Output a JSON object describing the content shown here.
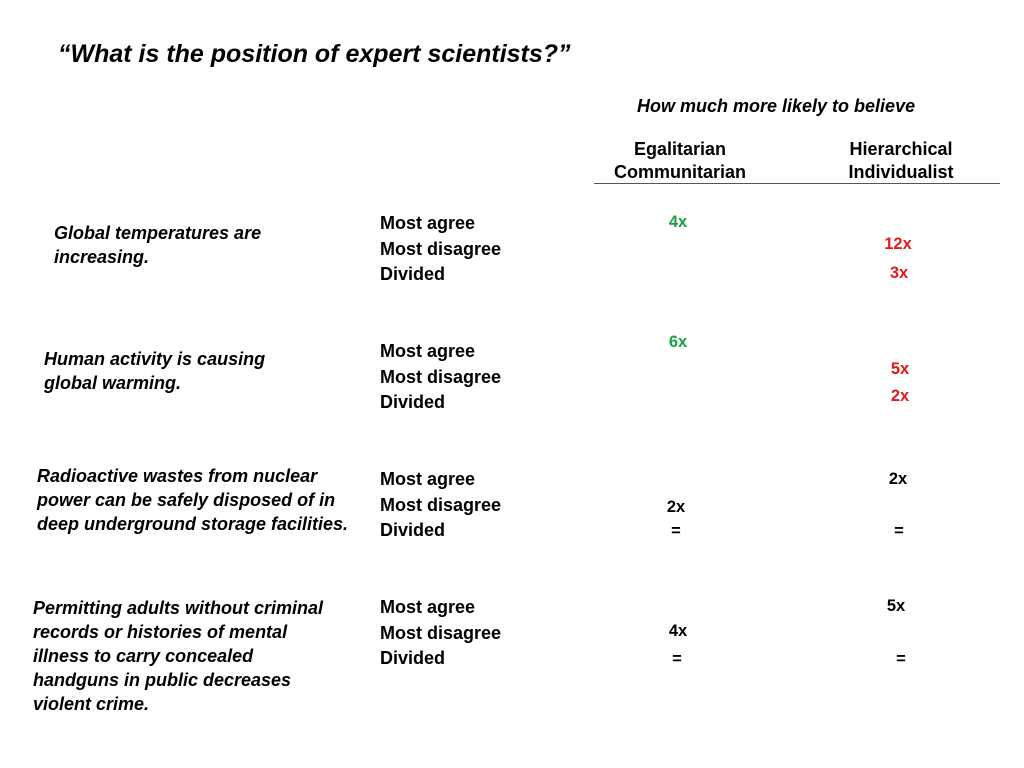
{
  "title": "“What is the position of expert scientists?”",
  "subtitle": "How much more likely to believe",
  "columns": {
    "egalitarian": [
      "Egalitarian",
      "Communitarian"
    ],
    "hierarchical": [
      "Hierarchical",
      "Individualist"
    ]
  },
  "colors": {
    "green": "#1aa341",
    "red": "#e01b1b",
    "black": "#000000"
  },
  "rows": [
    {
      "statement": "Global temperatures are increasing.",
      "options": [
        "Most agree",
        "Most disagree",
        "Divided"
      ],
      "values": [
        {
          "text": "4x",
          "color": "green"
        },
        {
          "text": "12x",
          "color": "red"
        },
        {
          "text": "3x",
          "color": "red"
        }
      ]
    },
    {
      "statement": "Human activity is causing global warming.",
      "options": [
        "Most agree",
        "Most disagree",
        "Divided"
      ],
      "values": [
        {
          "text": "6x",
          "color": "green"
        },
        {
          "text": "5x",
          "color": "red"
        },
        {
          "text": "2x",
          "color": "red"
        }
      ]
    },
    {
      "statement": "Radioactive wastes from nuclear power can be safely disposed of in deep underground storage facilities.",
      "options": [
        "Most agree",
        "Most disagree",
        "Divided"
      ],
      "values": [
        {
          "text": "2x",
          "color": "black"
        },
        {
          "text": "2x",
          "color": "black"
        },
        {
          "text": "=",
          "color": "black"
        },
        {
          "text": "=",
          "color": "black"
        }
      ]
    },
    {
      "statement": "Permitting adults without criminal records or histories of mental illness to carry concealed handguns in public decreases violent crime.",
      "options": [
        "Most agree",
        "Most disagree",
        "Divided"
      ],
      "values": [
        {
          "text": "5x",
          "color": "black"
        },
        {
          "text": "4x",
          "color": "black"
        },
        {
          "text": "=",
          "color": "black"
        },
        {
          "text": "=",
          "color": "black"
        }
      ]
    }
  ]
}
